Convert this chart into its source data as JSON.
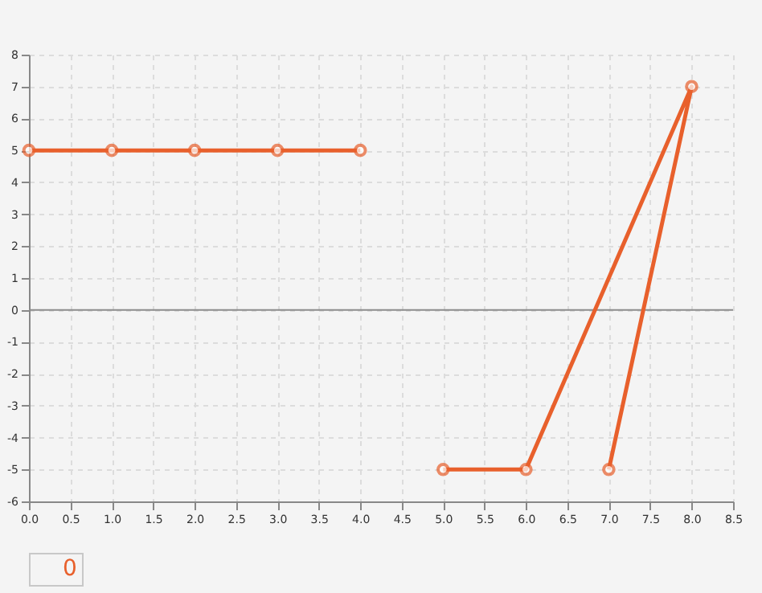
{
  "chart_data": {
    "type": "line",
    "legend": "bottom",
    "grid": true,
    "marker": "circle",
    "line_style": "solid",
    "x": [
      0,
      1,
      2,
      3,
      4,
      null,
      5,
      6,
      8,
      7
    ],
    "series": [
      {
        "name": "0",
        "color": "#e8602c",
        "values": [
          5,
          5,
          5,
          5,
          5,
          null,
          -5,
          -5,
          7,
          -5
        ]
      }
    ],
    "xlim": [
      0,
      8.5
    ],
    "xticks": [
      {
        "value": 0,
        "label": "0.0"
      },
      {
        "value": 0.5,
        "label": "0.5"
      },
      {
        "value": 1,
        "label": "1.0"
      },
      {
        "value": 1.5,
        "label": "1.5"
      },
      {
        "value": 2,
        "label": "2.0"
      },
      {
        "value": 2.5,
        "label": "2.5"
      },
      {
        "value": 3,
        "label": "3.0"
      },
      {
        "value": 3.5,
        "label": "3.5"
      },
      {
        "value": 4,
        "label": "4.0"
      },
      {
        "value": 4.5,
        "label": "4.5"
      },
      {
        "value": 5,
        "label": "5.0"
      },
      {
        "value": 5.5,
        "label": "5.5"
      },
      {
        "value": 6,
        "label": "6.0"
      },
      {
        "value": 6.5,
        "label": "6.5"
      },
      {
        "value": 7,
        "label": "7.0"
      },
      {
        "value": 7.5,
        "label": "7.5"
      },
      {
        "value": 8,
        "label": "8.0"
      },
      {
        "value": 8.5,
        "label": "8.5"
      }
    ],
    "ylim": [
      -6,
      8
    ],
    "yticks": [
      -6,
      -5,
      -4,
      -3,
      -2,
      -1,
      0,
      1,
      2,
      3,
      4,
      5,
      6,
      7,
      8
    ],
    "ref_lines": [
      {
        "axis": "y",
        "value": 0,
        "color": "#8c8c8c"
      }
    ]
  }
}
